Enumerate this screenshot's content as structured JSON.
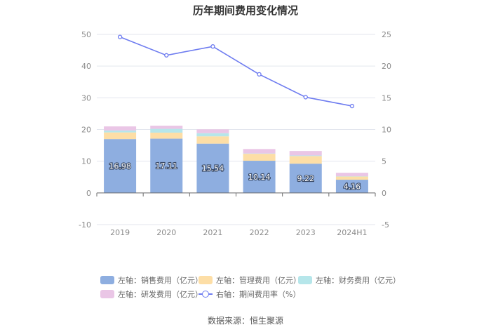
{
  "chart_data": {
    "type": "bar",
    "title": "历年期间费用变化情况",
    "categories": [
      "2019",
      "2020",
      "2021",
      "2022",
      "2023",
      "2024H1"
    ],
    "left_axis": {
      "ylim": [
        -10,
        50
      ],
      "ticks": [
        "50",
        "40",
        "30",
        "20",
        "10",
        "0",
        "-10"
      ]
    },
    "right_axis": {
      "ylim": [
        -5,
        25
      ],
      "ticks": [
        "25",
        "20",
        "15",
        "10",
        "5",
        "0",
        "-5"
      ]
    },
    "series": [
      {
        "name": "左轴：销售费用（亿元）",
        "axis": "left",
        "stack": "fees",
        "color": "#8EAEE0",
        "values": [
          16.98,
          17.11,
          15.54,
          10.14,
          9.22,
          4.16
        ],
        "labels": [
          "16.98",
          "17.11",
          "15.54",
          "10.14",
          "9.22",
          "4.16"
        ]
      },
      {
        "name": "左轴：管理费用（亿元）",
        "axis": "left",
        "stack": "fees",
        "color": "#FDDEA6",
        "values": [
          2.1,
          1.9,
          2.3,
          2.2,
          2.4,
          1.0
        ]
      },
      {
        "name": "左轴：财务费用（亿元）",
        "axis": "left",
        "stack": "fees",
        "color": "#B6E6EA",
        "values": [
          0.6,
          1.2,
          1.0,
          0.1,
          0.2,
          0.1
        ]
      },
      {
        "name": "左轴：研发费用（亿元）",
        "axis": "left",
        "stack": "fees",
        "color": "#EAC6E6",
        "values": [
          1.3,
          1.0,
          1.2,
          1.4,
          1.4,
          1.1
        ]
      },
      {
        "name": "右轴：期间费用率（%）",
        "axis": "right",
        "type": "line",
        "color": "#6E7CF0",
        "values": [
          24.6,
          21.7,
          23.1,
          18.7,
          15.1,
          13.7
        ]
      }
    ]
  },
  "source": "数据来源：恒生聚源"
}
